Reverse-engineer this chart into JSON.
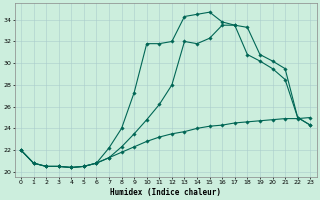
{
  "xlabel": "Humidex (Indice chaleur)",
  "bg_color": "#cceedd",
  "grid_color": "#aacccc",
  "line_color": "#006655",
  "xlim": [
    -0.5,
    23.5
  ],
  "ylim": [
    19.5,
    35.5
  ],
  "xticks": [
    0,
    1,
    2,
    3,
    4,
    5,
    6,
    7,
    8,
    9,
    10,
    11,
    12,
    13,
    14,
    15,
    16,
    17,
    18,
    19,
    20,
    21,
    22,
    23
  ],
  "yticks": [
    20,
    22,
    24,
    26,
    28,
    30,
    32,
    34
  ],
  "line1_x": [
    0,
    1,
    2,
    3,
    4,
    5,
    6,
    7,
    8,
    9,
    10,
    11,
    12,
    13,
    14,
    15,
    16,
    17,
    18,
    19,
    20,
    21,
    22,
    23
  ],
  "line1_y": [
    22.0,
    20.8,
    20.5,
    20.5,
    20.4,
    20.5,
    20.8,
    21.3,
    21.8,
    22.3,
    22.8,
    23.2,
    23.5,
    23.7,
    24.0,
    24.2,
    24.3,
    24.5,
    24.6,
    24.7,
    24.8,
    24.9,
    24.9,
    25.0
  ],
  "line2_x": [
    0,
    1,
    2,
    3,
    4,
    5,
    6,
    7,
    8,
    9,
    10,
    11,
    12,
    13,
    14,
    15,
    16,
    17,
    18,
    19,
    20,
    21,
    22,
    23
  ],
  "line2_y": [
    22.0,
    20.8,
    20.5,
    20.5,
    20.4,
    20.5,
    20.8,
    21.3,
    22.3,
    23.5,
    24.8,
    26.2,
    28.0,
    32.0,
    31.8,
    32.3,
    33.5,
    33.5,
    33.3,
    30.8,
    30.2,
    29.5,
    25.0,
    24.3
  ],
  "line3_x": [
    0,
    1,
    2,
    3,
    4,
    5,
    6,
    7,
    8,
    9,
    10,
    11,
    12,
    13,
    14,
    15,
    16,
    17,
    18,
    19,
    20,
    21,
    22,
    23
  ],
  "line3_y": [
    22.0,
    20.8,
    20.5,
    20.5,
    20.4,
    20.5,
    20.8,
    22.2,
    24.0,
    27.3,
    31.8,
    31.8,
    32.0,
    34.3,
    34.5,
    34.7,
    33.8,
    33.5,
    30.8,
    30.2,
    29.5,
    28.5,
    25.0,
    24.3
  ]
}
